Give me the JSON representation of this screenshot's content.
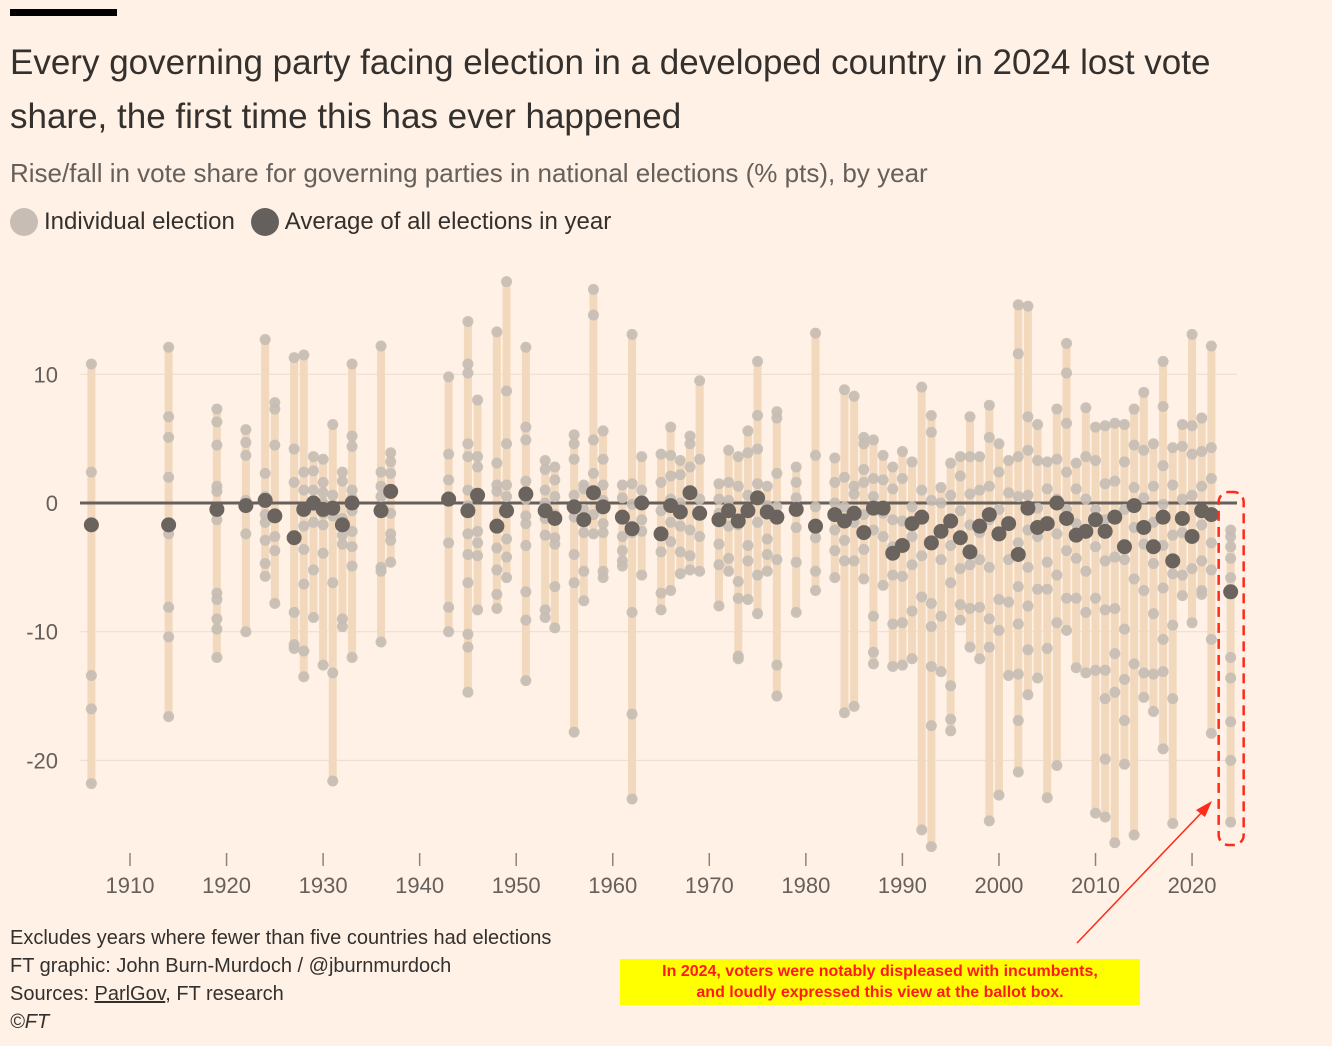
{
  "title": "Every governing party facing election in a developed country in 2024 lost vote share, the first time this has ever happened",
  "subtitle": "Rise/fall in vote share for governing parties in national elections (% pts), by year",
  "legend": [
    {
      "label": "Individual election",
      "color": "#c8bdb4"
    },
    {
      "label": "Average of all elections in year",
      "color": "#66605c"
    }
  ],
  "footer": {
    "note": "Excludes years where fewer than five countries had elections",
    "credit": "FT graphic: John Burn-Murdoch / @jburnmurdoch",
    "sources_prefix": "Sources: ",
    "sources_link": "ParlGov",
    "sources_suffix": ", FT research",
    "copyright": "©FT"
  },
  "annotation": {
    "line1": "In 2024, voters were notably displeased with incumbents,",
    "line2": "and loudly expressed this view at the ballot box."
  },
  "colors": {
    "range": "#f2d9bd",
    "point": "#c5bcb4",
    "average": "#6b635e",
    "zero": "#66605c",
    "grid": "#e9dcd0",
    "highlight": "#ff2a1a"
  },
  "chart_data": {
    "type": "scatter",
    "title": "Every governing party facing election in a developed country in 2024 lost vote share",
    "ylabel": "Rise/fall in vote share (% pts)",
    "xlabel": "",
    "ylim": [
      -27,
      18
    ],
    "xlim": [
      1904,
      2026
    ],
    "yticks": [
      10,
      0,
      -10,
      -20
    ],
    "xticks": [
      1910,
      1920,
      1930,
      1940,
      1950,
      1960,
      1970,
      1980,
      1990,
      2000,
      2010,
      2020
    ],
    "grid": true,
    "highlight_year": 2024,
    "years": [
      {
        "year": 1906,
        "avg": -1.7,
        "points": [
          10.8,
          2.4,
          -13.4,
          -16,
          -21.8
        ]
      },
      {
        "year": 1914,
        "avg": -1.7,
        "points": [
          12.1,
          6.7,
          5.1,
          2,
          -2.4,
          -8.1,
          -10.4,
          -16.6
        ]
      },
      {
        "year": 1919,
        "avg": -0.5,
        "points": [
          7.3,
          6.3,
          4.5,
          1.3,
          0.9,
          -1.3,
          -7,
          -7.5,
          -9,
          -9.8,
          -12
        ]
      },
      {
        "year": 1922,
        "avg": -0.2,
        "points": [
          5.7,
          4.7,
          3.7,
          0.2,
          -2.4,
          -10
        ]
      },
      {
        "year": 1924,
        "avg": 0.2,
        "points": [
          12.7,
          2.3,
          0.5,
          -0.9,
          -1.5,
          -2.9,
          -4.7,
          -5.7
        ]
      },
      {
        "year": 1925,
        "avg": -1.0,
        "points": [
          7.8,
          7.3,
          4.5,
          -2.6,
          -3.7,
          -7.8
        ]
      },
      {
        "year": 1927,
        "avg": -2.7,
        "points": [
          11.3,
          4.2,
          1.6,
          -8.5,
          -11,
          -11.3
        ]
      },
      {
        "year": 1928,
        "avg": -0.5,
        "points": [
          11.5,
          2.4,
          1,
          -1.8,
          -3.6,
          -6.3,
          -11.5,
          -13.5
        ]
      },
      {
        "year": 1929,
        "avg": 0,
        "points": [
          3.6,
          2.5,
          1,
          -0.2,
          -1.5,
          -5.2,
          -8.9
        ]
      },
      {
        "year": 1930,
        "avg": -0.5,
        "points": [
          3.4,
          1.6,
          0.8,
          0,
          -0.8,
          -1.7,
          -3.9,
          -12.6
        ]
      },
      {
        "year": 1931,
        "avg": -0.4,
        "points": [
          6.1,
          0.6,
          -0.5,
          -1,
          -6.2,
          -13.2,
          -21.6
        ]
      },
      {
        "year": 1932,
        "avg": -1.7,
        "points": [
          2.4,
          1.7,
          -1.2,
          -2.5,
          -3.2,
          -9,
          -9.6
        ]
      },
      {
        "year": 1933,
        "avg": 0,
        "points": [
          10.8,
          5.2,
          4.4,
          1,
          0.4,
          -0.6,
          -2.2,
          -3.4,
          -4.9,
          -12
        ]
      },
      {
        "year": 1936,
        "avg": -0.6,
        "points": [
          12.2,
          2.4,
          1.3,
          0.5,
          -0.6,
          -5,
          -5.3,
          -10.8
        ]
      },
      {
        "year": 1937,
        "avg": 0.9,
        "points": [
          3.9,
          3.2,
          2.3,
          -0.8,
          -2.4,
          -2.9,
          -4.6
        ]
      },
      {
        "year": 1943,
        "avg": 0.3,
        "points": [
          9.8,
          3.8,
          1.8,
          0.5,
          -3.1,
          -8.1,
          -10
        ]
      },
      {
        "year": 1945,
        "avg": -0.6,
        "points": [
          14.1,
          10.8,
          10.1,
          4.6,
          3.6,
          1,
          -0.2,
          -2.4,
          -4,
          -6.2,
          -10.2,
          -11.2,
          -14.7
        ]
      },
      {
        "year": 1946,
        "avg": 0.6,
        "points": [
          8,
          3.6,
          2.8,
          -2.2,
          -3.1,
          -4.1,
          -8.3
        ]
      },
      {
        "year": 1948,
        "avg": -1.8,
        "points": [
          13.3,
          3.1,
          1.4,
          0.9,
          -3.5,
          -5.2,
          -7.1,
          -8.2
        ]
      },
      {
        "year": 1949,
        "avg": -0.6,
        "points": [
          17.2,
          8.7,
          4.6,
          1.4,
          0.5,
          -2.8,
          -4.2,
          -5.8
        ]
      },
      {
        "year": 1951,
        "avg": 0.7,
        "points": [
          12.1,
          5.9,
          4.9,
          1.7,
          0.3,
          -1,
          -1.6,
          -3.3,
          -6.9,
          -9.1,
          -13.8
        ]
      },
      {
        "year": 1953,
        "avg": -0.6,
        "points": [
          3.3,
          2.6,
          1,
          0,
          -1.2,
          -2.5,
          -8.3,
          -8.9
        ]
      },
      {
        "year": 1954,
        "avg": -1.2,
        "points": [
          2.8,
          1.8,
          0.5,
          -0.9,
          -2.7,
          -3.2,
          -6.5,
          -9.7
        ]
      },
      {
        "year": 1956,
        "avg": -0.3,
        "points": [
          5.3,
          4.6,
          3.4,
          0.6,
          -1.1,
          -4,
          -6.2,
          -17.8
        ]
      },
      {
        "year": 1957,
        "avg": -1.3,
        "points": [
          1.4,
          1.1,
          -0.5,
          -2.3,
          -5.3,
          -7.6
        ]
      },
      {
        "year": 1958,
        "avg": 0.8,
        "points": [
          16.6,
          14.6,
          4.9,
          2.3,
          -0.9,
          -2.4
        ]
      },
      {
        "year": 1959,
        "avg": -0.3,
        "points": [
          5.6,
          3.4,
          1.4,
          0.2,
          -1.6,
          -2.3,
          -5.3,
          -5.8
        ]
      },
      {
        "year": 1961,
        "avg": -1.1,
        "points": [
          1.4,
          0.4,
          -2.6,
          -3.7,
          -4.5,
          -4.9
        ]
      },
      {
        "year": 1962,
        "avg": -2.0,
        "points": [
          13.1,
          1.5,
          -0.1,
          -2.3,
          -8.5,
          -16.4,
          -23
        ]
      },
      {
        "year": 1963,
        "avg": 0,
        "points": [
          3.6,
          1,
          -1.3,
          -2.2,
          -5.6
        ]
      },
      {
        "year": 1965,
        "avg": -2.4,
        "points": [
          3.8,
          1.6,
          -0.6,
          -3.8,
          -7,
          -8.3
        ]
      },
      {
        "year": 1966,
        "avg": -0.2,
        "points": [
          5.9,
          3.7,
          2.1,
          0.3,
          -1.5,
          -3,
          -6.8
        ]
      },
      {
        "year": 1967,
        "avg": -0.7,
        "points": [
          3.3,
          2.2,
          0,
          -1.8,
          -3.8,
          -5.5
        ]
      },
      {
        "year": 1968,
        "avg": 0.8,
        "points": [
          5.2,
          4.6,
          2.8,
          -2.1,
          -4.1,
          -5.2
        ]
      },
      {
        "year": 1969,
        "avg": -0.8,
        "points": [
          9.5,
          3.4,
          0.3,
          -2.6,
          -5.3
        ]
      },
      {
        "year": 1971,
        "avg": -1.3,
        "points": [
          1.5,
          0.3,
          -0.8,
          -3.2,
          -4.8,
          -8
        ]
      },
      {
        "year": 1972,
        "avg": -0.6,
        "points": [
          4.1,
          1.6,
          0.2,
          -1.8,
          -4.3,
          -5.3
        ]
      },
      {
        "year": 1973,
        "avg": -1.4,
        "points": [
          3.6,
          1.3,
          -1.7,
          -6.1,
          -7.4,
          -11.9,
          -12.1
        ]
      },
      {
        "year": 1974,
        "avg": -0.6,
        "points": [
          5.6,
          3.9,
          0.6,
          -0.5,
          -3.3,
          -4.5,
          -7.5
        ]
      },
      {
        "year": 1975,
        "avg": 0.4,
        "points": [
          11,
          6.8,
          4.2,
          1.5,
          -1.5,
          -5.6,
          -8.6
        ]
      },
      {
        "year": 1976,
        "avg": -0.7,
        "points": [
          1.3,
          -0.2,
          -2.8,
          -4,
          -5.3
        ]
      },
      {
        "year": 1977,
        "avg": -1.1,
        "points": [
          7.1,
          6.6,
          2.3,
          -0.3,
          -4.4,
          -12.6,
          -15
        ]
      },
      {
        "year": 1979,
        "avg": -0.5,
        "points": [
          2.8,
          1.6,
          0.4,
          -1.9,
          -4.6,
          -8.5
        ]
      },
      {
        "year": 1981,
        "avg": -1.8,
        "points": [
          13.2,
          3.7,
          -0.3,
          -2.7,
          -5.3,
          -6.8
        ]
      },
      {
        "year": 1983,
        "avg": -0.9,
        "points": [
          3.5,
          1.6,
          0,
          -2.1,
          -3.7,
          -5.8
        ]
      },
      {
        "year": 1984,
        "avg": -1.4,
        "points": [
          8.8,
          2,
          -0.3,
          -2.9,
          -4.5,
          -16.3
        ]
      },
      {
        "year": 1985,
        "avg": -0.8,
        "points": [
          8.3,
          1.3,
          0.7,
          -1.5,
          -4.5,
          -15.8
        ]
      },
      {
        "year": 1986,
        "avg": -2.3,
        "points": [
          5.1,
          4.6,
          2.6,
          1.6,
          -0.9,
          -3.6,
          -5.9
        ]
      },
      {
        "year": 1987,
        "avg": -0.4,
        "points": [
          4.9,
          1.9,
          0.5,
          -2.1,
          -8.8,
          -11.6,
          -12.5
        ]
      },
      {
        "year": 1988,
        "avg": -0.4,
        "points": [
          3.7,
          1.8,
          -0.8,
          -2.6,
          -6.4
        ]
      },
      {
        "year": 1989,
        "avg": -3.9,
        "points": [
          2.8,
          1.1,
          -1.3,
          -3.4,
          -5.6,
          -9.4,
          -12.7
        ]
      },
      {
        "year": 1990,
        "avg": -3.3,
        "points": [
          4,
          1.9,
          -1.4,
          -5.7,
          -9.3,
          -12.6
        ]
      },
      {
        "year": 1991,
        "avg": -1.6,
        "points": [
          3.2,
          -0.3,
          -2.6,
          -4.8,
          -8.4,
          -12.1
        ]
      },
      {
        "year": 1992,
        "avg": -1.1,
        "points": [
          9,
          1,
          -4.1,
          -7.3,
          -25.4
        ]
      },
      {
        "year": 1993,
        "avg": -3.1,
        "points": [
          6.8,
          5.5,
          0.2,
          -7.8,
          -9.6,
          -12.7,
          -17.3,
          -26.7
        ]
      },
      {
        "year": 1994,
        "avg": -2.2,
        "points": [
          1.2,
          0,
          -4.4,
          -8.8,
          -13.1
        ]
      },
      {
        "year": 1995,
        "avg": -1.4,
        "points": [
          3.1,
          0.6,
          -3.3,
          -6.2,
          -14.2,
          -16.8,
          -17.7
        ]
      },
      {
        "year": 1996,
        "avg": -2.7,
        "points": [
          3.6,
          2.1,
          -0.6,
          -5.1,
          -7.9,
          -9.1
        ]
      },
      {
        "year": 1997,
        "avg": -3.8,
        "points": [
          6.7,
          3.6,
          0.7,
          -1.7,
          -4.8,
          -8.2,
          -11.2
        ]
      },
      {
        "year": 1998,
        "avg": -1.8,
        "points": [
          3.6,
          1,
          -2.3,
          -4.4,
          -8.1,
          -12.1
        ]
      },
      {
        "year": 1999,
        "avg": -0.9,
        "points": [
          7.6,
          5.1,
          1.3,
          -1.3,
          -5,
          -9,
          -11.2,
          -24.7
        ]
      },
      {
        "year": 2000,
        "avg": -2.4,
        "points": [
          4.6,
          2.4,
          -0.5,
          -7.5,
          -9.9,
          -22.7
        ]
      },
      {
        "year": 2001,
        "avg": -1.6,
        "points": [
          3.3,
          0.8,
          -4.4,
          -7.7,
          -13.4
        ]
      },
      {
        "year": 2002,
        "avg": -4.0,
        "points": [
          15.4,
          11.6,
          3.6,
          0.5,
          -3.1,
          -6.5,
          -9.4,
          -13.3,
          -16.9,
          -20.9
        ]
      },
      {
        "year": 2003,
        "avg": -0.4,
        "points": [
          15.3,
          6.7,
          4.1,
          0.6,
          -2.1,
          -5,
          -8,
          -11.4,
          -14.9
        ]
      },
      {
        "year": 2004,
        "avg": -1.9,
        "points": [
          6.1,
          3.3,
          -0.4,
          -2.6,
          -6.7,
          -13.6
        ]
      },
      {
        "year": 2005,
        "avg": -1.6,
        "points": [
          3.2,
          1.1,
          -4.6,
          -6.7,
          -11.3,
          -22.9
        ]
      },
      {
        "year": 2006,
        "avg": 0,
        "points": [
          7.3,
          3.4,
          0.3,
          -2.4,
          -5.6,
          -9.3,
          -20.4
        ]
      },
      {
        "year": 2007,
        "avg": -1.2,
        "points": [
          12.4,
          10.1,
          6.2,
          2.4,
          -0.5,
          -3.7,
          -7.4,
          -9.9
        ]
      },
      {
        "year": 2008,
        "avg": -2.5,
        "points": [
          3.1,
          1.1,
          -1.6,
          -4.3,
          -7.4,
          -12.8
        ]
      },
      {
        "year": 2009,
        "avg": -2.2,
        "points": [
          7.4,
          3.6,
          0.3,
          -5.3,
          -8.5,
          -13.2
        ]
      },
      {
        "year": 2010,
        "avg": -1.3,
        "points": [
          5.9,
          3.3,
          -0.5,
          -3.4,
          -7.4,
          -13,
          -24.1
        ]
      },
      {
        "year": 2011,
        "avg": -2.2,
        "points": [
          6,
          1.5,
          -1.3,
          -4.5,
          -8.3,
          -13,
          -15.2,
          -19.9,
          -24.4
        ]
      },
      {
        "year": 2012,
        "avg": -1.1,
        "points": [
          6.2,
          1.7,
          -4.2,
          -8.2,
          -11.7,
          -14.7,
          -26.4
        ]
      },
      {
        "year": 2013,
        "avg": -3.4,
        "points": [
          6.1,
          3.2,
          -0.5,
          -4.4,
          -9.8,
          -13.7,
          -16.9,
          -20.3
        ]
      },
      {
        "year": 2014,
        "avg": -0.2,
        "points": [
          7.3,
          4.5,
          1.2,
          -1.9,
          -5.9,
          -12.5,
          -25.8
        ]
      },
      {
        "year": 2015,
        "avg": -1.9,
        "points": [
          8.6,
          4.1,
          0.4,
          -3.2,
          -6.8,
          -13.2,
          -15.1
        ]
      },
      {
        "year": 2016,
        "avg": -3.4,
        "points": [
          4.6,
          1.3,
          -1.5,
          -4.7,
          -8.6,
          -13.3,
          -16.2
        ]
      },
      {
        "year": 2017,
        "avg": -1.1,
        "points": [
          11,
          7.5,
          2.9,
          -0.1,
          -3.3,
          -6.6,
          -10.6,
          -13.1,
          -19.1
        ]
      },
      {
        "year": 2018,
        "avg": -4.5,
        "points": [
          4.3,
          1.4,
          -2.5,
          -5.5,
          -9.5,
          -15.2,
          -24.9
        ]
      },
      {
        "year": 2019,
        "avg": -1.2,
        "points": [
          6.1,
          4.4,
          0.3,
          -2.3,
          -5.6,
          -7.2
        ]
      },
      {
        "year": 2020,
        "avg": -2.6,
        "points": [
          13.1,
          6,
          3.8,
          0.6,
          -5.1,
          -9.3
        ]
      },
      {
        "year": 2021,
        "avg": -0.6,
        "points": [
          6.6,
          4,
          1.3,
          -1.7,
          -4.5,
          -6.8,
          -7.1
        ]
      },
      {
        "year": 2022,
        "avg": -0.9,
        "points": [
          12.2,
          4.3,
          1.9,
          -3.1,
          -5.2,
          -10.6,
          -17.9
        ]
      },
      {
        "year": 2024,
        "avg": -6.9,
        "points": [
          -2.1,
          -2.6,
          -3.4,
          -4.3,
          -5.8,
          -12,
          -13.6,
          -17,
          -20,
          -24.8
        ]
      }
    ]
  }
}
